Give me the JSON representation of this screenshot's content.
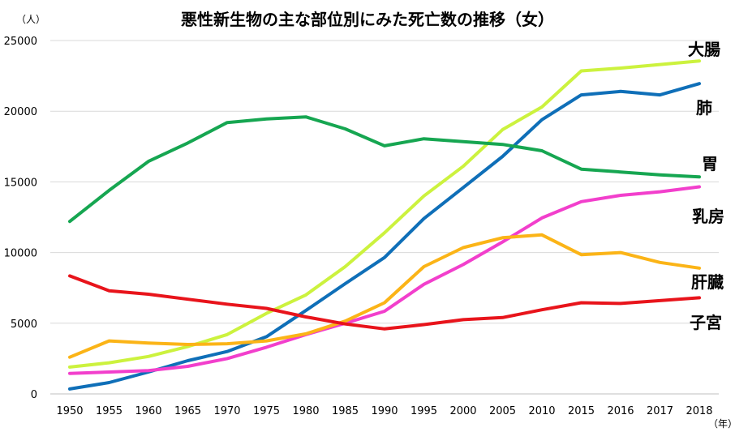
{
  "chart_data": {
    "type": "line",
    "title": "悪性新生物の主な部位別にみた死亡数の推移（女）",
    "y_unit": "（人）",
    "x_unit": "（年）",
    "xlabel": "",
    "ylabel": "",
    "ylim": [
      0,
      25000
    ],
    "yticks": [
      0,
      5000,
      10000,
      15000,
      20000,
      25000
    ],
    "grid": true,
    "legend": "direct-labels-right",
    "categories": [
      "1950",
      "1955",
      "1960",
      "1965",
      "1970",
      "1975",
      "1980",
      "1985",
      "1990",
      "1995",
      "2000",
      "2005",
      "2010",
      "2015",
      "2016",
      "2017",
      "2018"
    ],
    "series": [
      {
        "name": "大腸",
        "color": "#ccf23e",
        "values": [
          1900,
          2200,
          2650,
          3350,
          4200,
          5700,
          7000,
          9000,
          11400,
          14000,
          16100,
          18700,
          20300,
          22850,
          23050,
          23300,
          23550
        ]
      },
      {
        "name": "肺",
        "color": "#0f6fb8",
        "values": [
          350,
          800,
          1550,
          2350,
          3000,
          4050,
          5900,
          7800,
          9650,
          12400,
          14600,
          16800,
          19400,
          21150,
          21400,
          21150,
          21950
        ]
      },
      {
        "name": "胃",
        "color": "#16a651",
        "values": [
          12200,
          14400,
          16450,
          17750,
          19200,
          19450,
          19600,
          18750,
          17550,
          18050,
          17850,
          17650,
          17200,
          15900,
          15700,
          15500,
          15350
        ]
      },
      {
        "name": "乳房",
        "color": "#f23fcc",
        "values": [
          1450,
          1550,
          1650,
          1950,
          2500,
          3300,
          4200,
          5000,
          5850,
          7750,
          9150,
          10750,
          12450,
          13600,
          14050,
          14300,
          14650
        ]
      },
      {
        "name": "肝臓",
        "color": "#fbb417",
        "values": [
          2600,
          3750,
          3600,
          3500,
          3550,
          3750,
          4250,
          5150,
          6450,
          9000,
          10350,
          11050,
          11250,
          9850,
          10000,
          9300,
          8900
        ]
      },
      {
        "name": "子宮",
        "color": "#e8141b",
        "values": [
          8350,
          7300,
          7050,
          6700,
          6350,
          6050,
          5450,
          4950,
          4600,
          4900,
          5250,
          5400,
          5950,
          6450,
          6400,
          6600,
          6800
        ]
      }
    ]
  }
}
